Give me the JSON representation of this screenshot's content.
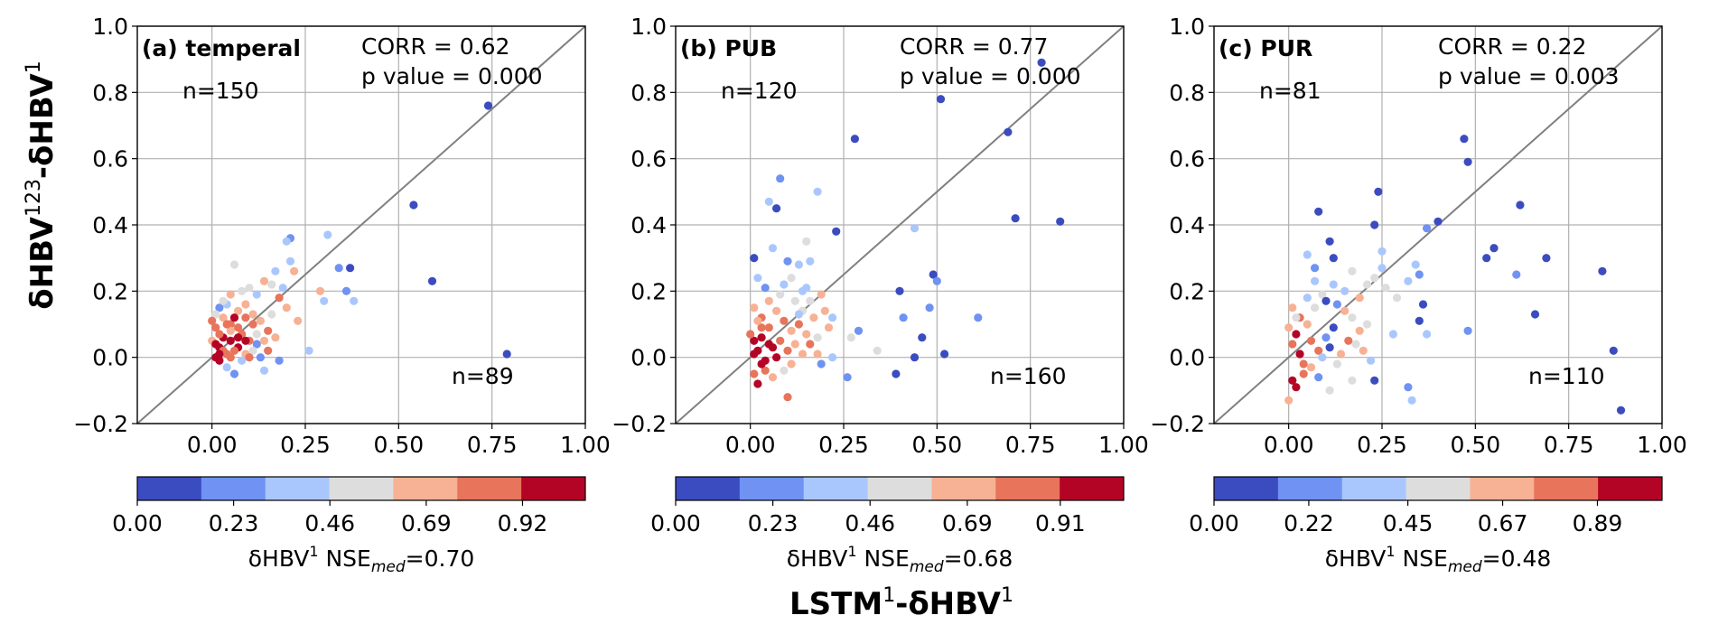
{
  "figure": {
    "ylabel": {
      "base": "δHBV",
      "sup1": "123",
      "mid": "-δHBV",
      "sup2": "1"
    },
    "xlabel": {
      "base": "LSTM",
      "sup1": "1",
      "mid": "-δHBV",
      "sup2": "1"
    }
  },
  "colors": [
    "#3b4cc0",
    "#6f92f3",
    "#aac7fd",
    "#dddddd",
    "#f7b194",
    "#e7745b",
    "#b40426"
  ],
  "chart_data": [
    {
      "type": "scatter",
      "panel_label": "(a) temperal",
      "corr_text": "CORR = 0.62",
      "p_text": "p value = 0.000",
      "n_upper": "n=150",
      "n_lower": "n=89",
      "xlim": [
        -0.2,
        1.0
      ],
      "ylim": [
        -0.2,
        1.0
      ],
      "xticks": [
        "0.00",
        "0.25",
        "0.50",
        "0.75",
        "1.00"
      ],
      "yticks": [
        "−0.2",
        "0.0",
        "0.2",
        "0.4",
        "0.6",
        "0.8",
        "1.0"
      ],
      "grid": true,
      "diagonal": "y = x",
      "colorbar_ticks": [
        "0.00",
        "0.23",
        "0.46",
        "0.69",
        "0.92"
      ],
      "colorbar_range": [
        0,
        1.07
      ],
      "colorbar_label": {
        "base": "δHBV",
        "sup": "1",
        "mid": " NSE",
        "sub": "med",
        "tail": "=0.70"
      },
      "points": [
        [
          0.74,
          0.76,
          0
        ],
        [
          0.54,
          0.46,
          0
        ],
        [
          0.59,
          0.23,
          0
        ],
        [
          0.79,
          0.01,
          0
        ],
        [
          0.21,
          0.36,
          1
        ],
        [
          0.2,
          0.35,
          2
        ],
        [
          0.31,
          0.37,
          2
        ],
        [
          0.34,
          0.27,
          1
        ],
        [
          0.37,
          0.27,
          0
        ],
        [
          0.36,
          0.2,
          1
        ],
        [
          0.38,
          0.17,
          2
        ],
        [
          0.3,
          0.17,
          2
        ],
        [
          0.26,
          0.02,
          2
        ],
        [
          0.29,
          0.2,
          4
        ],
        [
          0.22,
          0.26,
          4
        ],
        [
          0.21,
          0.29,
          2
        ],
        [
          0.19,
          0.21,
          2
        ],
        [
          0.18,
          0.18,
          5
        ],
        [
          0.17,
          0.26,
          2
        ],
        [
          0.16,
          0.22,
          3
        ],
        [
          0.14,
          0.23,
          4
        ],
        [
          0.12,
          0.19,
          2
        ],
        [
          0.1,
          0.21,
          3
        ],
        [
          0.08,
          0.2,
          3
        ],
        [
          0.06,
          0.28,
          3
        ],
        [
          0.05,
          0.19,
          4
        ],
        [
          0.04,
          0.16,
          2
        ],
        [
          0.02,
          0.15,
          1
        ],
        [
          0.03,
          0.12,
          4
        ],
        [
          0.05,
          0.1,
          5
        ],
        [
          0.07,
          0.14,
          4
        ],
        [
          0.09,
          0.12,
          5
        ],
        [
          0.11,
          0.1,
          5
        ],
        [
          0.13,
          0.11,
          4
        ],
        [
          0.15,
          0.08,
          5
        ],
        [
          0.17,
          0.06,
          4
        ],
        [
          0.12,
          0.04,
          1
        ],
        [
          0.14,
          -0.04,
          2
        ],
        [
          0.18,
          -0.01,
          1
        ],
        [
          0.06,
          -0.05,
          1
        ],
        [
          0.04,
          -0.03,
          2
        ],
        [
          0.02,
          0.03,
          6
        ],
        [
          0.03,
          0.06,
          6
        ],
        [
          0.05,
          0.05,
          6
        ],
        [
          0.07,
          0.03,
          6
        ],
        [
          0.08,
          0.07,
          5
        ],
        [
          0.1,
          0.05,
          5
        ],
        [
          0.01,
          0.0,
          6
        ],
        [
          0.02,
          -0.01,
          6
        ],
        [
          0.04,
          0.01,
          5
        ],
        [
          0.06,
          0.02,
          5
        ],
        [
          0.09,
          0.01,
          4
        ],
        [
          0.11,
          0.02,
          3
        ],
        [
          0.01,
          0.09,
          5
        ],
        [
          0.02,
          0.07,
          5
        ],
        [
          0.03,
          0.02,
          5
        ],
        [
          0.05,
          0.08,
          4
        ],
        [
          0.07,
          0.09,
          5
        ],
        [
          0.09,
          0.16,
          4
        ],
        [
          0.12,
          0.07,
          3
        ],
        [
          0.14,
          0.05,
          4
        ],
        [
          0.16,
          0.13,
          3
        ],
        [
          0.0,
          0.05,
          4
        ],
        [
          0.01,
          0.13,
          3
        ],
        [
          0.03,
          0.17,
          3
        ],
        [
          0.08,
          -0.01,
          2
        ],
        [
          0.1,
          0.0,
          5
        ],
        [
          0.15,
          0.02,
          5
        ],
        [
          0.06,
          0.12,
          6
        ],
        [
          0.04,
          0.1,
          5
        ],
        [
          0.2,
          0.15,
          4
        ],
        [
          0.23,
          0.11,
          4
        ],
        [
          0.02,
          0.01,
          6
        ],
        [
          0.01,
          0.04,
          6
        ],
        [
          0.0,
          0.11,
          5
        ],
        [
          0.13,
          0.0,
          1
        ],
        [
          0.11,
          0.13,
          4
        ],
        [
          0.09,
          0.05,
          6
        ],
        [
          0.07,
          0.06,
          6
        ],
        [
          0.05,
          0.0,
          5
        ]
      ]
    },
    {
      "type": "scatter",
      "panel_label": "(b) PUB",
      "corr_text": "CORR = 0.77",
      "p_text": "p value = 0.000",
      "n_upper": "n=120",
      "n_lower": "n=160",
      "xlim": [
        -0.2,
        1.0
      ],
      "ylim": [
        -0.2,
        1.0
      ],
      "xticks": [
        "0.00",
        "0.25",
        "0.50",
        "0.75",
        "1.00"
      ],
      "yticks": [
        "−0.2",
        "0.0",
        "0.2",
        "0.4",
        "0.6",
        "0.8",
        "1.0"
      ],
      "grid": true,
      "diagonal": "y = x",
      "colorbar_ticks": [
        "0.00",
        "0.23",
        "0.46",
        "0.69",
        "0.91"
      ],
      "colorbar_range": [
        0,
        1.06
      ],
      "colorbar_label": {
        "base": "δHBV",
        "sup": "1",
        "mid": " NSE",
        "sub": "med",
        "tail": "=0.68"
      },
      "points": [
        [
          0.78,
          0.89,
          0
        ],
        [
          0.51,
          0.78,
          0
        ],
        [
          0.69,
          0.68,
          0
        ],
        [
          0.28,
          0.66,
          0
        ],
        [
          0.08,
          0.54,
          1
        ],
        [
          0.05,
          0.47,
          2
        ],
        [
          0.07,
          0.45,
          0
        ],
        [
          0.18,
          0.5,
          2
        ],
        [
          0.71,
          0.42,
          0
        ],
        [
          0.83,
          0.41,
          0
        ],
        [
          0.44,
          0.39,
          2
        ],
        [
          0.23,
          0.38,
          0
        ],
        [
          0.01,
          0.3,
          0
        ],
        [
          0.06,
          0.33,
          2
        ],
        [
          0.1,
          0.29,
          1
        ],
        [
          0.13,
          0.28,
          2
        ],
        [
          0.15,
          0.35,
          3
        ],
        [
          0.16,
          0.29,
          2
        ],
        [
          0.02,
          0.24,
          2
        ],
        [
          0.04,
          0.21,
          1
        ],
        [
          0.09,
          0.22,
          2
        ],
        [
          0.11,
          0.24,
          3
        ],
        [
          0.14,
          0.2,
          2
        ],
        [
          0.16,
          0.17,
          3
        ],
        [
          0.19,
          0.19,
          4
        ],
        [
          0.2,
          0.14,
          4
        ],
        [
          0.22,
          0.12,
          2
        ],
        [
          0.29,
          0.08,
          1
        ],
        [
          0.4,
          0.2,
          0
        ],
        [
          0.41,
          0.12,
          1
        ],
        [
          0.49,
          0.25,
          0
        ],
        [
          0.5,
          0.23,
          1
        ],
        [
          0.48,
          0.15,
          1
        ],
        [
          0.46,
          0.06,
          0
        ],
        [
          0.44,
          0.0,
          0
        ],
        [
          0.39,
          -0.05,
          0
        ],
        [
          0.52,
          0.01,
          0
        ],
        [
          0.61,
          0.12,
          1
        ],
        [
          0.34,
          0.02,
          3
        ],
        [
          0.27,
          0.06,
          3
        ],
        [
          0.22,
          0.0,
          2
        ],
        [
          0.18,
          0.01,
          4
        ],
        [
          0.01,
          0.15,
          4
        ],
        [
          0.03,
          0.12,
          5
        ],
        [
          0.05,
          0.09,
          5
        ],
        [
          0.07,
          0.14,
          4
        ],
        [
          0.09,
          0.11,
          5
        ],
        [
          0.11,
          0.08,
          4
        ],
        [
          0.13,
          0.1,
          5
        ],
        [
          0.15,
          0.07,
          4
        ],
        [
          0.17,
          0.12,
          4
        ],
        [
          0.01,
          0.05,
          6
        ],
        [
          0.02,
          0.02,
          6
        ],
        [
          0.03,
          0.06,
          6
        ],
        [
          0.04,
          -0.01,
          6
        ],
        [
          0.06,
          0.03,
          6
        ],
        [
          0.08,
          0.05,
          5
        ],
        [
          0.1,
          0.02,
          5
        ],
        [
          0.12,
          0.04,
          4
        ],
        [
          0.14,
          0.01,
          4
        ],
        [
          0.01,
          -0.05,
          5
        ],
        [
          0.02,
          -0.08,
          6
        ],
        [
          0.04,
          -0.04,
          5
        ],
        [
          0.06,
          -0.06,
          4
        ],
        [
          0.09,
          -0.04,
          3
        ],
        [
          0.1,
          -0.12,
          5
        ],
        [
          0.08,
          0.19,
          3
        ],
        [
          0.05,
          0.17,
          4
        ],
        [
          0.12,
          0.17,
          3
        ],
        [
          0.14,
          0.14,
          3
        ],
        [
          0.03,
          0.09,
          5
        ],
        [
          0.0,
          0.07,
          5
        ],
        [
          0.02,
          0.11,
          4
        ],
        [
          0.16,
          0.04,
          5
        ],
        [
          0.11,
          -0.02,
          4
        ],
        [
          0.07,
          0.0,
          6
        ],
        [
          0.01,
          0.01,
          6
        ],
        [
          0.03,
          -0.02,
          6
        ],
        [
          0.05,
          0.04,
          6
        ],
        [
          0.13,
          0.13,
          2
        ],
        [
          0.15,
          0.21,
          2
        ],
        [
          0.18,
          0.06,
          3
        ],
        [
          0.21,
          0.09,
          4
        ],
        [
          0.19,
          -0.02,
          1
        ],
        [
          0.26,
          -0.06,
          1
        ]
      ]
    },
    {
      "type": "scatter",
      "panel_label": "(c) PUR",
      "corr_text": "CORR = 0.22",
      "p_text": "p value = 0.003",
      "n_upper": "n=81",
      "n_lower": "n=110",
      "xlim": [
        -0.2,
        1.0
      ],
      "ylim": [
        -0.2,
        1.0
      ],
      "xticks": [
        "0.00",
        "0.25",
        "0.50",
        "0.75",
        "1.00"
      ],
      "yticks": [
        "−0.2",
        "0.0",
        "0.2",
        "0.4",
        "0.6",
        "0.8",
        "1.0"
      ],
      "grid": true,
      "diagonal": "y = x",
      "colorbar_ticks": [
        "0.00",
        "0.22",
        "0.45",
        "0.67",
        "0.89"
      ],
      "colorbar_range": [
        0,
        1.04
      ],
      "colorbar_label": {
        "base": "δHBV",
        "sup": "1",
        "mid": " NSE",
        "sub": "med",
        "tail": "=0.48"
      },
      "points": [
        [
          0.47,
          0.66,
          0
        ],
        [
          0.48,
          0.59,
          0
        ],
        [
          0.24,
          0.5,
          0
        ],
        [
          0.62,
          0.46,
          0
        ],
        [
          0.08,
          0.44,
          0
        ],
        [
          0.4,
          0.41,
          0
        ],
        [
          0.37,
          0.39,
          1
        ],
        [
          0.23,
          0.4,
          0
        ],
        [
          0.11,
          0.35,
          0
        ],
        [
          0.55,
          0.33,
          0
        ],
        [
          0.53,
          0.3,
          0
        ],
        [
          0.69,
          0.3,
          0
        ],
        [
          0.07,
          0.27,
          1
        ],
        [
          0.12,
          0.3,
          0
        ],
        [
          0.05,
          0.31,
          2
        ],
        [
          0.25,
          0.32,
          2
        ],
        [
          0.25,
          0.27,
          2
        ],
        [
          0.23,
          0.24,
          3
        ],
        [
          0.26,
          0.21,
          3
        ],
        [
          0.29,
          0.18,
          3
        ],
        [
          0.34,
          0.28,
          2
        ],
        [
          0.35,
          0.25,
          1
        ],
        [
          0.32,
          0.23,
          2
        ],
        [
          0.36,
          0.16,
          0
        ],
        [
          0.35,
          0.11,
          0
        ],
        [
          0.37,
          0.07,
          2
        ],
        [
          0.28,
          0.07,
          2
        ],
        [
          0.48,
          0.08,
          1
        ],
        [
          0.61,
          0.25,
          1
        ],
        [
          0.66,
          0.13,
          0
        ],
        [
          0.84,
          0.26,
          0
        ],
        [
          0.87,
          0.02,
          0
        ],
        [
          0.89,
          -0.16,
          0
        ],
        [
          0.32,
          -0.09,
          1
        ],
        [
          0.33,
          -0.13,
          2
        ],
        [
          0.23,
          -0.07,
          0
        ],
        [
          0.17,
          -0.07,
          3
        ],
        [
          0.11,
          -0.1,
          3
        ],
        [
          0.0,
          -0.13,
          4
        ],
        [
          0.01,
          0.15,
          4
        ],
        [
          0.03,
          0.12,
          5
        ],
        [
          0.05,
          0.1,
          4
        ],
        [
          0.07,
          0.15,
          3
        ],
        [
          0.09,
          0.19,
          3
        ],
        [
          0.1,
          0.17,
          0
        ],
        [
          0.13,
          0.16,
          1
        ],
        [
          0.15,
          0.14,
          4
        ],
        [
          0.17,
          0.12,
          3
        ],
        [
          0.19,
          0.08,
          4
        ],
        [
          0.21,
          0.1,
          3
        ],
        [
          0.18,
          0.04,
          3
        ],
        [
          0.2,
          0.02,
          4
        ],
        [
          0.22,
          -0.01,
          2
        ],
        [
          0.01,
          0.04,
          5
        ],
        [
          0.02,
          0.07,
          6
        ],
        [
          0.03,
          0.01,
          6
        ],
        [
          0.04,
          -0.02,
          5
        ],
        [
          0.06,
          0.05,
          5
        ],
        [
          0.08,
          0.02,
          5
        ],
        [
          0.1,
          0.06,
          1
        ],
        [
          0.12,
          0.09,
          0
        ],
        [
          0.14,
          0.01,
          4
        ],
        [
          0.16,
          0.05,
          5
        ],
        [
          0.01,
          -0.07,
          6
        ],
        [
          0.02,
          -0.09,
          6
        ],
        [
          0.04,
          -0.05,
          5
        ],
        [
          0.06,
          -0.03,
          4
        ],
        [
          0.08,
          -0.06,
          1
        ],
        [
          0.09,
          0.0,
          2
        ],
        [
          0.11,
          0.03,
          0
        ],
        [
          0.13,
          -0.02,
          3
        ],
        [
          0.15,
          0.2,
          2
        ],
        [
          0.17,
          0.26,
          3
        ],
        [
          0.19,
          0.18,
          4
        ],
        [
          0.21,
          0.22,
          3
        ],
        [
          0.0,
          0.09,
          4
        ],
        [
          0.02,
          0.12,
          3
        ],
        [
          0.05,
          0.18,
          2
        ],
        [
          0.07,
          0.23,
          2
        ],
        [
          0.12,
          0.22,
          2
        ]
      ]
    }
  ]
}
